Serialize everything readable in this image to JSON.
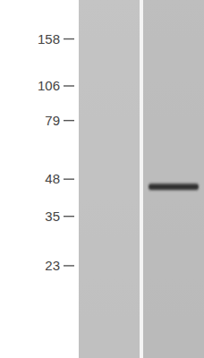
{
  "chart_data": {
    "type": "western_blot",
    "categories": [
      null,
      null
    ],
    "values": [
      null,
      45
    ],
    "log": "y",
    "ylim": [
      10.5,
      220
    ],
    "yticks": [
      158,
      106,
      79,
      48,
      35,
      23
    ],
    "tick_labels": "y",
    "color": "#2e2e2e"
  }
}
